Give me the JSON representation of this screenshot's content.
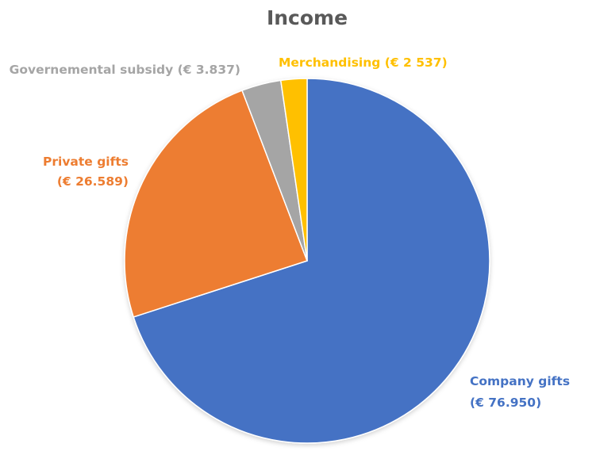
{
  "chart_data": {
    "type": "pie",
    "title": "Income",
    "slices": [
      {
        "category": "Company gifts",
        "value_text": "(€ 76.950)",
        "value": 76950,
        "color": "#4472C4"
      },
      {
        "category": "Private gifts",
        "value_text": "(€ 26.589)",
        "value": 26589,
        "color": "#ED7D31"
      },
      {
        "category": "Governemental subsidy",
        "value_text": "(€ 3.837)",
        "value": 3837,
        "color": "#A5A5A5"
      },
      {
        "category": "Merchandising",
        "value_text": "(€ 2 537)",
        "value": 2537,
        "color": "#FFC000"
      }
    ],
    "start_angle": "12 o'clock",
    "direction": "clockwise",
    "legend": "none"
  }
}
